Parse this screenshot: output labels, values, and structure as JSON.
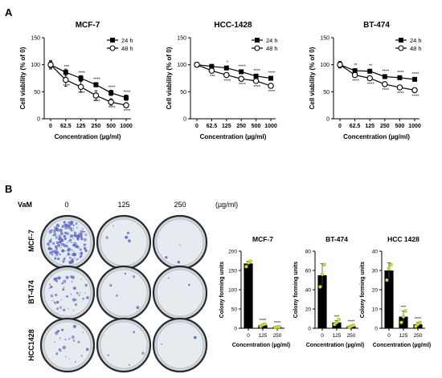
{
  "panel_a_label": "A",
  "panel_b_label": "B",
  "colony_assay": {
    "treatment_label": "VaM",
    "doses": [
      "0",
      "125",
      "250"
    ],
    "dose_unit": "(µg/ml)",
    "cell_lines": [
      "MCF-7",
      "BT-474",
      "HCC1428"
    ]
  },
  "chart_data": [
    {
      "type": "line",
      "title": "MCF-7",
      "xlabel": "Concentration (µg/ml)",
      "ylabel": "Cell viability (% of 0)",
      "x": [
        "0",
        "62.5",
        "125",
        "250",
        "500",
        "1000"
      ],
      "ylim": [
        0,
        150
      ],
      "yticks": [
        0,
        50,
        100,
        150
      ],
      "series": [
        {
          "name": "24 h",
          "marker": "filled-square",
          "values": [
            100,
            86,
            75,
            63,
            48,
            39
          ],
          "err": [
            6,
            6,
            5,
            4,
            5,
            5
          ],
          "stars": [
            "",
            "***",
            "****",
            "****",
            "****",
            "****"
          ]
        },
        {
          "name": "48 h",
          "marker": "open-circle",
          "values": [
            100,
            72,
            59,
            43,
            31,
            25
          ],
          "err": [
            8,
            12,
            10,
            9,
            6,
            4
          ],
          "stars": [
            "",
            "****",
            "****",
            "****",
            "****",
            "****"
          ]
        }
      ],
      "legend": "top-right"
    },
    {
      "type": "line",
      "title": "HCC-1428",
      "xlabel": "Concentration (µg/ml)",
      "ylabel": "Cell viability (% of 0)",
      "x": [
        "0",
        "62.5",
        "125",
        "250",
        "500",
        "1000"
      ],
      "ylim": [
        0,
        150
      ],
      "yticks": [
        0,
        50,
        100,
        150
      ],
      "series": [
        {
          "name": "24 h",
          "marker": "filled-square",
          "values": [
            100,
            97,
            94,
            87,
            79,
            75
          ],
          "err": [
            3,
            2,
            2,
            2,
            2,
            2
          ],
          "stars": [
            "",
            "",
            "*",
            "****",
            "****",
            "****"
          ]
        },
        {
          "name": "48 h",
          "marker": "open-circle",
          "values": [
            100,
            89,
            81,
            74,
            70,
            61
          ],
          "err": [
            3,
            2,
            2,
            2,
            2,
            2
          ],
          "stars": [
            "",
            "***",
            "****",
            "****",
            "****",
            "****"
          ]
        }
      ],
      "legend": "top-right"
    },
    {
      "type": "line",
      "title": "BT-474",
      "xlabel": "Concentration (µg/ml)",
      "ylabel": "Cell viability (% of 0)",
      "x": [
        "0",
        "62.5",
        "125",
        "250",
        "500",
        "1000"
      ],
      "ylim": [
        0,
        150
      ],
      "yticks": [
        0,
        50,
        100,
        150
      ],
      "series": [
        {
          "name": "24 h",
          "marker": "filled-square",
          "values": [
            100,
            89,
            88,
            78,
            76,
            73
          ],
          "err": [
            6,
            2,
            2,
            2,
            2,
            2
          ],
          "stars": [
            "",
            "**",
            "**",
            "****",
            "****",
            "****"
          ]
        },
        {
          "name": "48 h",
          "marker": "open-circle",
          "values": [
            100,
            81,
            75,
            64,
            58,
            53
          ],
          "err": [
            6,
            2,
            2,
            2,
            2,
            2
          ],
          "stars": [
            "",
            "****",
            "****",
            "****",
            "****",
            "****"
          ]
        }
      ],
      "legend": "top-right"
    },
    {
      "type": "bar",
      "title": "MCF-7",
      "xlabel": "Concentration (µg/ml)",
      "ylabel": "Colony forming units",
      "categories": [
        "0",
        "125",
        "250"
      ],
      "values": [
        168,
        8,
        3
      ],
      "err": [
        6,
        2,
        1
      ],
      "stars": [
        "",
        "****",
        "****"
      ],
      "points": [
        [
          160,
          170,
          174
        ],
        [
          5,
          9,
          11
        ],
        [
          2,
          3,
          4
        ]
      ],
      "ylim": [
        0,
        200
      ],
      "yticks": [
        0,
        50,
        100,
        150,
        200
      ]
    },
    {
      "type": "bar",
      "title": "BT-474",
      "xlabel": "Concentration (µg/ml)",
      "ylabel": "Colony forming units",
      "categories": [
        "0",
        "125",
        "250"
      ],
      "values": [
        55,
        6,
        2
      ],
      "err": [
        12,
        2,
        1
      ],
      "stars": [
        "",
        "***",
        "****"
      ],
      "points": [
        [
          43,
          56,
          66
        ],
        [
          4,
          6,
          9
        ],
        [
          1,
          2,
          3
        ]
      ],
      "ylim": [
        0,
        80
      ],
      "yticks": [
        0,
        20,
        40,
        60,
        80
      ]
    },
    {
      "type": "bar",
      "title": "HCC 1428",
      "xlabel": "Concentration (µg/ml)",
      "ylabel": "Colony forming units",
      "categories": [
        "0",
        "125",
        "250"
      ],
      "values": [
        30,
        6,
        2
      ],
      "err": [
        4,
        3,
        1
      ],
      "stars": [
        "",
        "***",
        "****"
      ],
      "points": [
        [
          25,
          31,
          33
        ],
        [
          3,
          6,
          9
        ],
        [
          1,
          2,
          3
        ]
      ],
      "ylim": [
        0,
        40
      ],
      "yticks": [
        0,
        10,
        20,
        30,
        40
      ]
    }
  ]
}
